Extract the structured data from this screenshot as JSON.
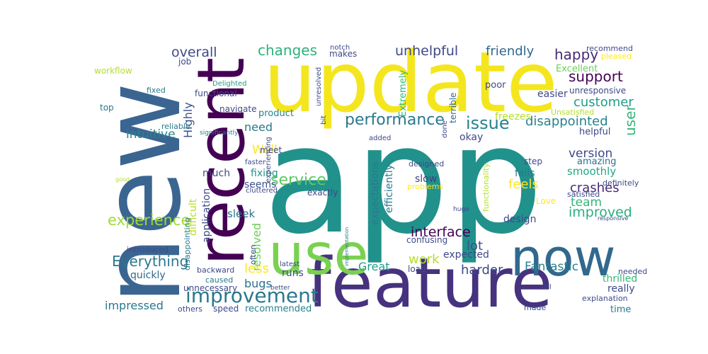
{
  "colors": {
    "background": "#ffffff",
    "palette": [
      "#440154",
      "#482878",
      "#3e4989",
      "#31688e",
      "#26828e",
      "#1f9e89",
      "#35b779",
      "#6ece58",
      "#b5de2b",
      "#fde725"
    ]
  },
  "words": [
    {
      "text": "app",
      "color": "#21918c"
    },
    {
      "text": "new",
      "color": "#3b6591"
    },
    {
      "text": "update",
      "color": "#f4e61e"
    },
    {
      "text": "feature",
      "color": "#46327e"
    },
    {
      "text": "recent",
      "color": "#440154"
    },
    {
      "text": "use",
      "color": "#7ad151"
    },
    {
      "text": "now",
      "color": "#31688e"
    },
    {
      "text": "improvement",
      "color": "#2a788e"
    },
    {
      "text": "performance",
      "color": "#2a788e"
    },
    {
      "text": "service",
      "color": "#5ec962"
    },
    {
      "text": "experience",
      "color": "#9fda3a"
    },
    {
      "text": "Everything",
      "color": "#2a788e"
    },
    {
      "text": "interface",
      "color": "#440154"
    },
    {
      "text": "improved",
      "color": "#29af7f"
    },
    {
      "text": "issue",
      "color": "#26828e"
    },
    {
      "text": "changes",
      "color": "#2db27d"
    },
    {
      "text": "overall",
      "color": "#3e4989"
    },
    {
      "text": "unhelpful",
      "color": "#3e4989"
    },
    {
      "text": "friendly",
      "color": "#31688e"
    },
    {
      "text": "happy",
      "color": "#482878"
    },
    {
      "text": "support",
      "color": "#440154"
    },
    {
      "text": "customer",
      "color": "#1f9e89"
    },
    {
      "text": "disappointed",
      "color": "#26828e"
    },
    {
      "text": "user",
      "color": "#35b779"
    },
    {
      "text": "version",
      "color": "#3e4989"
    },
    {
      "text": "crashes",
      "color": "#482878"
    },
    {
      "text": "team",
      "color": "#35b779"
    },
    {
      "text": "harder",
      "color": "#3e4989"
    },
    {
      "text": "Fantastic",
      "color": "#26828e"
    },
    {
      "text": "Great",
      "color": "#1f9e89"
    },
    {
      "text": "impressed",
      "color": "#2a788e"
    },
    {
      "text": "intuitive",
      "color": "#26828e"
    },
    {
      "text": "Well",
      "color": "#fde725"
    },
    {
      "text": "need",
      "color": "#2a788e"
    },
    {
      "text": "resolved",
      "color": "#6ece58"
    },
    {
      "text": "less",
      "color": "#fde725"
    },
    {
      "text": "bugs",
      "color": "#2c728e"
    },
    {
      "text": "lot",
      "color": "#3b528b"
    },
    {
      "text": "work",
      "color": "#b5de2b"
    },
    {
      "text": "feels",
      "color": "#fde725"
    },
    {
      "text": "Highly",
      "color": "#3b528b"
    },
    {
      "text": "sleek",
      "color": "#2c728e"
    },
    {
      "text": "fixing",
      "color": "#21918c"
    },
    {
      "text": "seems",
      "color": "#3b528b"
    },
    {
      "text": "much",
      "color": "#3e4989"
    },
    {
      "text": "meet",
      "color": "#3e4989"
    },
    {
      "text": "product",
      "color": "#26828e"
    },
    {
      "text": "slow",
      "color": "#433e85"
    },
    {
      "text": "design",
      "color": "#3e4989"
    },
    {
      "text": "fails",
      "color": "#2a788e"
    },
    {
      "text": "smoothly",
      "color": "#22a884"
    },
    {
      "text": "amazing",
      "color": "#2c728e"
    },
    {
      "text": "helpful",
      "color": "#3e4989"
    },
    {
      "text": "thrilled",
      "color": "#35b779"
    },
    {
      "text": "really",
      "color": "#3e4989"
    },
    {
      "text": "time",
      "color": "#2a788e"
    },
    {
      "text": "recommended",
      "color": "#26828e"
    },
    {
      "text": "expected",
      "color": "#3e4989"
    },
    {
      "text": "okay",
      "color": "#3e4989"
    },
    {
      "text": "freezes",
      "color": "#b5de2b"
    },
    {
      "text": "quickly",
      "color": "#31688e"
    },
    {
      "text": "runs",
      "color": "#3e4989"
    },
    {
      "text": "speed",
      "color": "#3e4989"
    },
    {
      "text": "difficult",
      "color": "#b5de2b"
    },
    {
      "text": "application",
      "color": "#3e4989"
    },
    {
      "text": "efficiently",
      "color": "#2a788e"
    },
    {
      "text": "expectations",
      "color": "#2a788e"
    },
    {
      "text": "exactly",
      "color": "#3e4989"
    },
    {
      "text": "job",
      "color": "#3e4989"
    },
    {
      "text": "functional",
      "color": "#3e4989"
    },
    {
      "text": "navigate",
      "color": "#3e4989"
    },
    {
      "text": "workflow",
      "color": "#b5de2b"
    },
    {
      "text": "fixed",
      "color": "#2a788e"
    },
    {
      "text": "top",
      "color": "#2a788e"
    },
    {
      "text": "reliable",
      "color": "#2a788e"
    },
    {
      "text": "Delighted",
      "color": "#1f9e89"
    },
    {
      "text": "significantly",
      "color": "#2a788e"
    },
    {
      "text": "makes",
      "color": "#3e4989"
    },
    {
      "text": "notch",
      "color": "#3e4989"
    },
    {
      "text": "unresolved",
      "color": "#3e4989"
    },
    {
      "text": "bit",
      "color": "#3e4989"
    },
    {
      "text": "Extremely",
      "color": "#35b779"
    },
    {
      "text": "terrible",
      "color": "#31688e"
    },
    {
      "text": "done",
      "color": "#3e4989"
    },
    {
      "text": "added",
      "color": "#3e4989"
    },
    {
      "text": "poor",
      "color": "#3e4989"
    },
    {
      "text": "Excellent",
      "color": "#6ece58"
    },
    {
      "text": "easier",
      "color": "#3e4989"
    },
    {
      "text": "unresponsive",
      "color": "#3e4989"
    },
    {
      "text": "Unsatisfied",
      "color": "#b5de2b"
    },
    {
      "text": "recommend",
      "color": "#3e4989"
    },
    {
      "text": "pleased",
      "color": "#fde725"
    },
    {
      "text": "definitely",
      "color": "#3e4989"
    },
    {
      "text": "step",
      "color": "#3e4989"
    },
    {
      "text": "designed",
      "color": "#3e4989"
    },
    {
      "text": "functionality",
      "color": "#b5de2b"
    },
    {
      "text": "satisfied",
      "color": "#3e4989"
    },
    {
      "text": "Love",
      "color": "#fde725"
    },
    {
      "text": "problems",
      "color": "#fde725"
    },
    {
      "text": "huge",
      "color": "#3e4989"
    },
    {
      "text": "implementation",
      "color": "#2a788e"
    },
    {
      "text": "responsive",
      "color": "#3e4989"
    },
    {
      "text": "confusing",
      "color": "#3e4989"
    },
    {
      "text": "cluttered",
      "color": "#3e4989"
    },
    {
      "text": "faster",
      "color": "#3e4989"
    },
    {
      "text": "experiencing",
      "color": "#3e4989"
    },
    {
      "text": "latest",
      "color": "#3e4989"
    },
    {
      "text": "better",
      "color": "#3e4989"
    },
    {
      "text": "often",
      "color": "#3e4989"
    },
    {
      "text": "backward",
      "color": "#3e4989"
    },
    {
      "text": "caused",
      "color": "#2a788e"
    },
    {
      "text": "disappointing",
      "color": "#2a788e"
    },
    {
      "text": "introduced",
      "color": "#3e4989"
    },
    {
      "text": "unnecessary",
      "color": "#3e4989"
    },
    {
      "text": "others",
      "color": "#3e4989"
    },
    {
      "text": "good",
      "color": "#b5de2b"
    },
    {
      "text": "load",
      "color": "#3e4989"
    },
    {
      "text": "made",
      "color": "#3e4989"
    },
    {
      "text": "explanation",
      "color": "#3e4989"
    },
    {
      "text": "needed",
      "color": "#3e4989"
    },
    {
      "text": "still",
      "color": "#3e4989"
    }
  ]
}
